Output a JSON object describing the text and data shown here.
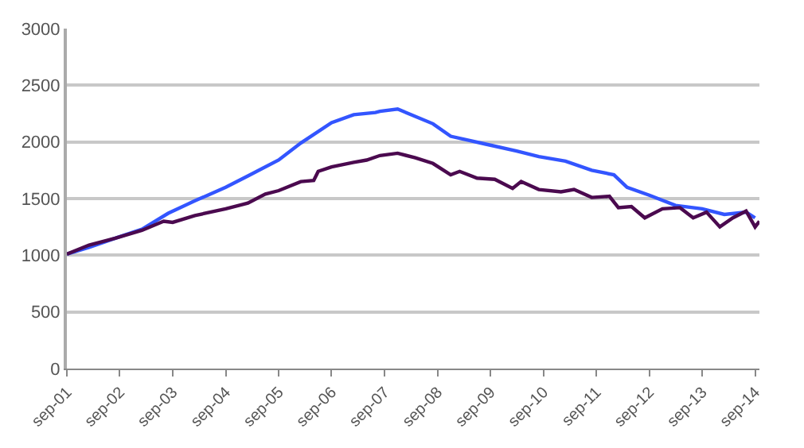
{
  "chart_data": {
    "type": "line",
    "xlim": [
      "2001-09",
      "2014-10"
    ],
    "xticks": [
      {
        "value": "2001-09",
        "label": "sep-01"
      },
      {
        "value": "2002-09",
        "label": "sep-02"
      },
      {
        "value": "2003-09",
        "label": "sep-03"
      },
      {
        "value": "2004-09",
        "label": "sep-04"
      },
      {
        "value": "2005-09",
        "label": "sep-05"
      },
      {
        "value": "2006-09",
        "label": "sep-06"
      },
      {
        "value": "2007-09",
        "label": "sep-07"
      },
      {
        "value": "2008-09",
        "label": "sep-08"
      },
      {
        "value": "2009-09",
        "label": "sep-09"
      },
      {
        "value": "2010-09",
        "label": "sep-10"
      },
      {
        "value": "2011-09",
        "label": "sep-11"
      },
      {
        "value": "2012-09",
        "label": "sep-12"
      },
      {
        "value": "2013-09",
        "label": "sep-13"
      },
      {
        "value": "2014-09",
        "label": "sep-14"
      }
    ],
    "ylim": [
      0,
      3000
    ],
    "yticks": [
      0,
      500,
      1000,
      1500,
      2000,
      2500,
      3000
    ],
    "grid": "y",
    "legend": false,
    "marker": "none",
    "line_style": "solid",
    "series": [
      {
        "color": "#3355ff",
        "x": [
          "2001-09",
          "2002-02",
          "2002-08",
          "2003-02",
          "2003-08",
          "2004-02",
          "2004-09",
          "2005-02",
          "2005-09",
          "2006-02",
          "2006-09",
          "2007-02",
          "2007-07",
          "2007-08",
          "2007-12",
          "2008-08",
          "2008-12",
          "2009-08",
          "2010-03",
          "2010-08",
          "2011-02",
          "2011-08",
          "2012-01",
          "2012-04",
          "2012-09",
          "2013-03",
          "2013-09",
          "2014-02",
          "2014-07",
          "2014-09"
        ],
        "values": [
          1010,
          1070,
          1150,
          1230,
          1370,
          1480,
          1600,
          1700,
          1840,
          1990,
          2170,
          2240,
          2260,
          2270,
          2290,
          2160,
          2050,
          1980,
          1920,
          1870,
          1830,
          1750,
          1710,
          1600,
          1530,
          1440,
          1410,
          1360,
          1380,
          1330
        ]
      },
      {
        "color": "#4b0a4f",
        "x": [
          "2001-09",
          "2002-02",
          "2002-08",
          "2003-02",
          "2003-07",
          "2003-09",
          "2004-02",
          "2004-09",
          "2005-02",
          "2005-06",
          "2005-09",
          "2006-02",
          "2006-05",
          "2006-06",
          "2006-09",
          "2007-02",
          "2007-05",
          "2007-08",
          "2007-12",
          "2008-04",
          "2008-08",
          "2008-12",
          "2009-02",
          "2009-06",
          "2009-10",
          "2010-02",
          "2010-04",
          "2010-08",
          "2011-01",
          "2011-04",
          "2011-08",
          "2011-12",
          "2012-02",
          "2012-05",
          "2012-08",
          "2012-12",
          "2013-04",
          "2013-07",
          "2013-10",
          "2014-01",
          "2014-04",
          "2014-07",
          "2014-09",
          "2014-10"
        ],
        "values": [
          1010,
          1090,
          1150,
          1220,
          1300,
          1290,
          1350,
          1410,
          1460,
          1540,
          1570,
          1650,
          1660,
          1740,
          1780,
          1820,
          1840,
          1880,
          1900,
          1860,
          1810,
          1710,
          1740,
          1680,
          1670,
          1590,
          1650,
          1580,
          1560,
          1580,
          1510,
          1520,
          1420,
          1430,
          1330,
          1410,
          1420,
          1330,
          1380,
          1250,
          1330,
          1390,
          1250,
          1300
        ]
      }
    ]
  }
}
